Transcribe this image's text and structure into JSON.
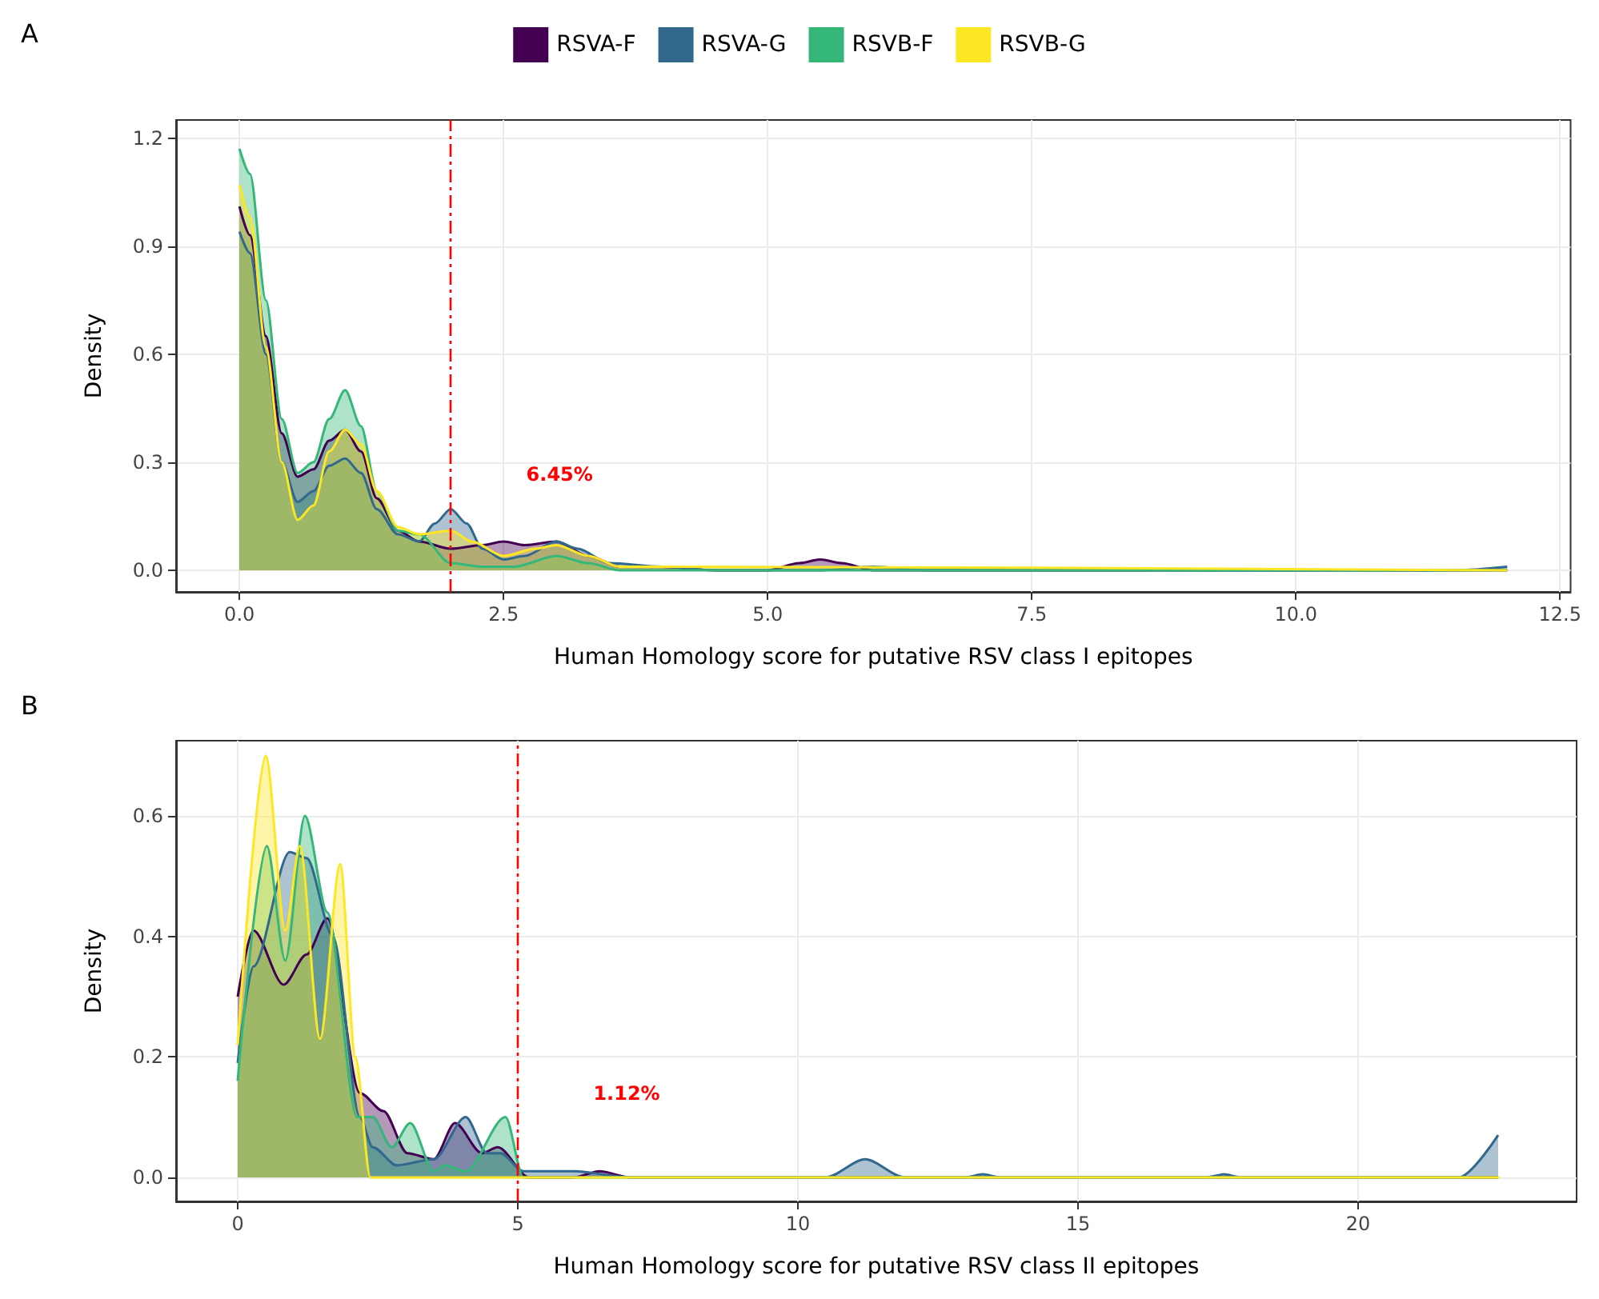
{
  "chart_data": [
    {
      "type": "area",
      "title": "A",
      "xlabel": "Human Homology score for putative RSV class I epitopes",
      "ylabel": "Density",
      "xlim": [
        -0.6,
        12.6
      ],
      "ylim": [
        -0.06,
        1.25
      ],
      "xticks": [
        {
          "value": 0,
          "label": "0.0"
        },
        2.5,
        {
          "value": 5,
          "label": "5.0"
        },
        7.5,
        {
          "value": 10,
          "label": "10.0"
        },
        12.5
      ],
      "yticks": [
        {
          "value": 0,
          "label": "0.0"
        },
        0.3,
        0.6,
        0.9,
        1.2
      ],
      "grid": true,
      "legend": "top",
      "series": [
        {
          "name": "RSVA-F",
          "color": "#440154",
          "x": [
            0,
            0.1,
            0.25,
            0.4,
            0.55,
            0.7,
            0.85,
            1.0,
            1.15,
            1.3,
            1.5,
            1.7,
            2.0,
            2.3,
            2.5,
            2.7,
            3.0,
            3.3,
            3.6,
            4.0,
            4.5,
            5.0,
            5.3,
            5.5,
            5.7,
            6.0,
            8,
            12
          ],
          "values": [
            1.01,
            0.93,
            0.65,
            0.38,
            0.26,
            0.28,
            0.36,
            0.39,
            0.33,
            0.2,
            0.11,
            0.08,
            0.06,
            0.07,
            0.08,
            0.07,
            0.08,
            0.04,
            0.01,
            0.01,
            0,
            0,
            0.02,
            0.03,
            0.02,
            0,
            0,
            0
          ]
        },
        {
          "name": "RSVA-G",
          "color": "#31688e",
          "x": [
            0,
            0.1,
            0.25,
            0.4,
            0.55,
            0.7,
            0.85,
            1.0,
            1.15,
            1.3,
            1.5,
            1.7,
            1.85,
            2.0,
            2.15,
            2.3,
            2.5,
            2.7,
            3.0,
            3.2,
            3.5,
            4.0,
            4.5,
            5.5,
            6.0,
            6.5,
            11.5,
            12
          ],
          "values": [
            0.94,
            0.88,
            0.6,
            0.3,
            0.19,
            0.22,
            0.29,
            0.31,
            0.27,
            0.17,
            0.1,
            0.08,
            0.13,
            0.17,
            0.13,
            0.06,
            0.03,
            0.04,
            0.08,
            0.06,
            0.02,
            0.01,
            0,
            0,
            0.01,
            0,
            0,
            0.01
          ]
        },
        {
          "name": "RSVB-F",
          "color": "#35b779",
          "x": [
            0,
            0.1,
            0.25,
            0.4,
            0.55,
            0.7,
            0.85,
            1.0,
            1.15,
            1.3,
            1.5,
            1.7,
            2.0,
            2.3,
            2.6,
            3.0,
            3.3,
            3.6,
            12
          ],
          "values": [
            1.17,
            1.1,
            0.75,
            0.42,
            0.27,
            0.3,
            0.42,
            0.5,
            0.4,
            0.22,
            0.11,
            0.1,
            0.02,
            0.01,
            0.01,
            0.04,
            0.02,
            0,
            0
          ]
        },
        {
          "name": "RSVB-G",
          "color": "#fde725",
          "x": [
            0,
            0.1,
            0.25,
            0.4,
            0.55,
            0.7,
            0.85,
            1.0,
            1.15,
            1.3,
            1.5,
            1.7,
            2.0,
            2.2,
            2.5,
            2.8,
            3.0,
            3.3,
            3.6,
            4.0,
            12
          ],
          "values": [
            1.07,
            0.98,
            0.62,
            0.3,
            0.14,
            0.18,
            0.33,
            0.39,
            0.35,
            0.22,
            0.12,
            0.1,
            0.11,
            0.08,
            0.04,
            0.06,
            0.07,
            0.04,
            0.01,
            0.01,
            0
          ]
        }
      ],
      "ref_lines": [
        {
          "axis": "x",
          "value": 2,
          "color": "#ff0000",
          "line_style": "dashed"
        }
      ],
      "annotations": [
        "6.45%"
      ]
    },
    {
      "type": "area",
      "title": "B",
      "xlabel": "Human Homology score for putative RSV class II epitopes",
      "ylabel": "Density",
      "xlim": [
        -1.1,
        23.9
      ],
      "ylim": [
        -0.04,
        0.725
      ],
      "xticks": [
        0,
        5,
        10,
        15,
        20
      ],
      "yticks": [
        {
          "value": 0,
          "label": "0.0"
        },
        0.2,
        0.4,
        0.6
      ],
      "grid": true,
      "series": [
        {
          "color": "#440154",
          "x": [
            0,
            0.28,
            0.82,
            1.23,
            1.6,
            2.18,
            2.6,
            3.03,
            3.5,
            3.88,
            4.36,
            4.64,
            5.2,
            6.0,
            6.46,
            7.0,
            22.5
          ],
          "values": [
            0.3,
            0.41,
            0.32,
            0.37,
            0.43,
            0.14,
            0.11,
            0.04,
            0.03,
            0.09,
            0.04,
            0.05,
            0,
            0,
            0.01,
            0,
            0
          ]
        },
        {
          "color": "#31688e",
          "x": [
            0,
            0.28,
            0.93,
            1.23,
            1.7,
            2.18,
            2.41,
            2.84,
            3.5,
            4.07,
            4.45,
            4.69,
            5.1,
            6.0,
            7.0,
            10.5,
            11.2,
            11.9,
            13.0,
            13.3,
            13.6,
            17.3,
            17.6,
            17.9,
            21.8,
            22.5
          ],
          "values": [
            0.19,
            0.35,
            0.54,
            0.53,
            0.4,
            0.1,
            0.05,
            0.02,
            0.03,
            0.1,
            0.04,
            0.04,
            0.01,
            0.01,
            0,
            0,
            0.03,
            0,
            0,
            0.005,
            0,
            0,
            0.005,
            0,
            0,
            0.07
          ]
        },
        {
          "color": "#35b779",
          "x": [
            0,
            0.52,
            0.85,
            1.2,
            1.6,
            2.13,
            2.41,
            2.75,
            3.08,
            3.5,
            3.7,
            4.07,
            4.78,
            5.1,
            22.5
          ],
          "values": [
            0.16,
            0.55,
            0.36,
            0.6,
            0.44,
            0.1,
            0.1,
            0.05,
            0.09,
            0.01,
            0.02,
            0.01,
            0.1,
            0,
            0
          ]
        },
        {
          "color": "#fde725",
          "x": [
            0,
            0.5,
            0.85,
            1.11,
            1.47,
            1.83,
            2.1,
            2.37,
            22.5
          ],
          "values": [
            0.22,
            0.7,
            0.41,
            0.55,
            0.23,
            0.52,
            0.2,
            0,
            0
          ]
        }
      ],
      "ref_lines": [
        {
          "axis": "x",
          "value": 5,
          "color": "#ff0000",
          "line_style": "dashed"
        }
      ],
      "annotations": [
        "1.12%"
      ]
    }
  ]
}
